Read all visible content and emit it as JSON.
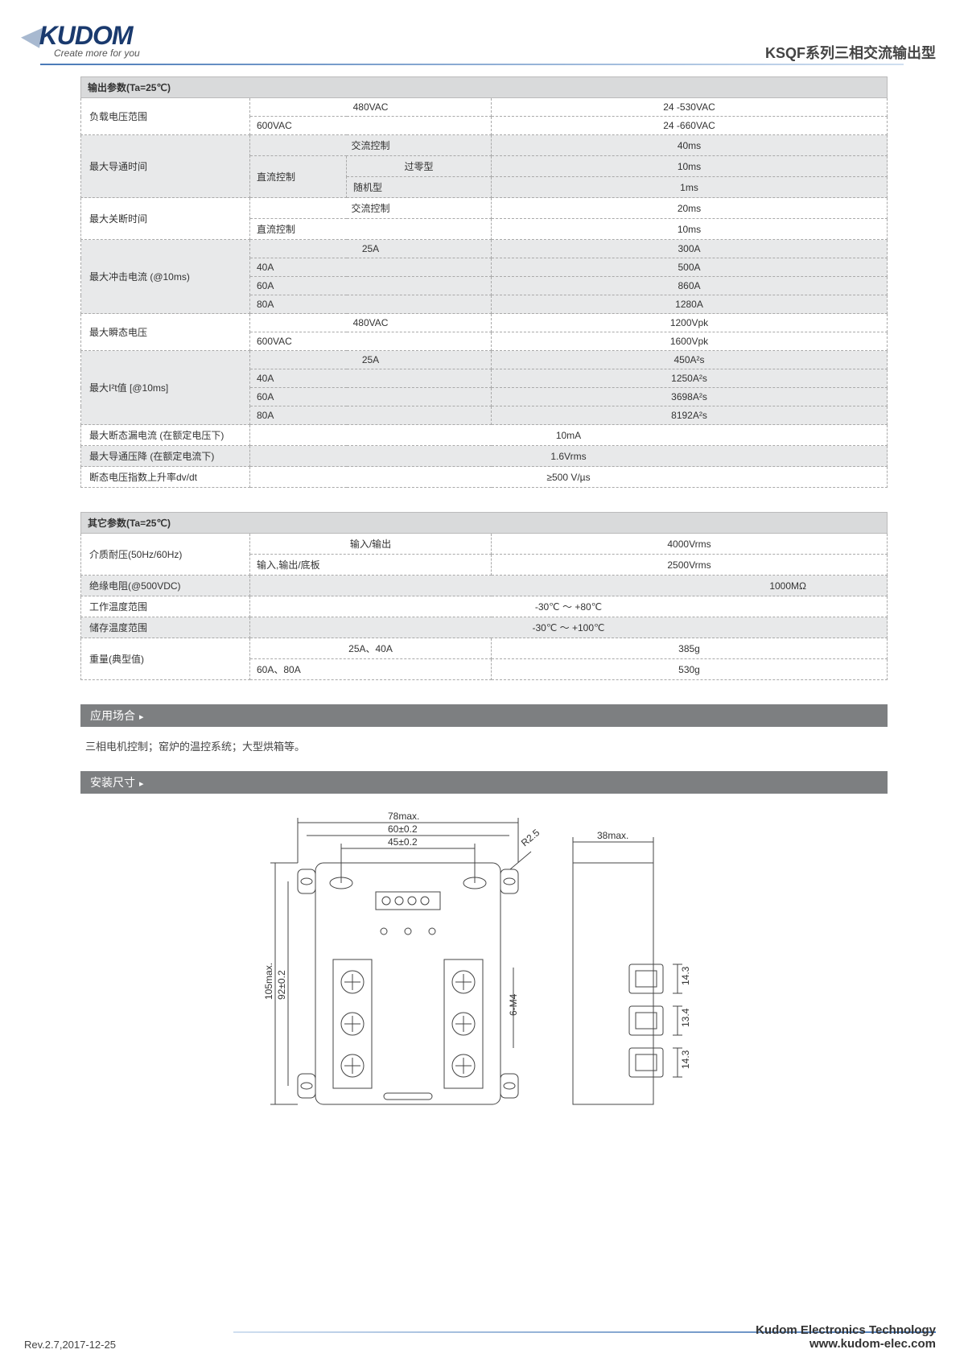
{
  "header": {
    "logo_text": "KUDOM",
    "tagline": "Create more for you",
    "product_title": "KSQF系列三相交流输出型"
  },
  "table1": {
    "title": "输出参数(Ta=25℃)",
    "rows": [
      {
        "label": "负载电压范围",
        "sub": "480VAC",
        "val": "24 -530VAC",
        "shade": false
      },
      {
        "label": "",
        "sub": "600VAC",
        "val": "24 -660VAC",
        "shade": false
      },
      {
        "label": "最大导通时间",
        "mid": "",
        "sub": "交流控制",
        "val": "40ms",
        "shade": true
      },
      {
        "label": "",
        "mid": "直流控制",
        "sub": "过零型",
        "val": "10ms",
        "shade": true
      },
      {
        "label": "",
        "mid": "",
        "sub": "随机型",
        "val": "1ms",
        "shade": true
      },
      {
        "label": "最大关断时间",
        "sub": "交流控制",
        "val": "20ms",
        "shade": false
      },
      {
        "label": "",
        "sub": "直流控制",
        "val": "10ms",
        "shade": false
      },
      {
        "label": "最大冲击电流 (@10ms)",
        "sub": "25A",
        "val": "300A",
        "shade": true
      },
      {
        "label": "",
        "sub": "40A",
        "val": "500A",
        "shade": true
      },
      {
        "label": "",
        "sub": "60A",
        "val": "860A",
        "shade": true
      },
      {
        "label": "",
        "sub": "80A",
        "val": "1280A",
        "shade": true
      },
      {
        "label": "最大瞬态电压",
        "sub": "480VAC",
        "val": "1200Vpk",
        "shade": false
      },
      {
        "label": "",
        "sub": "600VAC",
        "val": "1600Vpk",
        "shade": false
      },
      {
        "label": "最大I²t值 [@10ms]",
        "sub": "25A",
        "val": "450A²s",
        "shade": true
      },
      {
        "label": "",
        "sub": "40A",
        "val": "1250A²s",
        "shade": true
      },
      {
        "label": "",
        "sub": "60A",
        "val": "3698A²s",
        "shade": true
      },
      {
        "label": "",
        "sub": "80A",
        "val": "8192A²s",
        "shade": true
      },
      {
        "label": "最大断态漏电流 (在额定电压下)",
        "full": "10mA",
        "shade": false
      },
      {
        "label": "最大导通压降 (在额定电流下)",
        "full": "1.6Vrms",
        "shade": true
      },
      {
        "label": "断态电压指数上升率dv/dt",
        "full": "≥500 V/µs",
        "shade": false
      }
    ]
  },
  "table2": {
    "title": "其它参数(Ta=25℃)",
    "rows": [
      {
        "label": "介质耐压(50Hz/60Hz)",
        "sub": "输入/输出",
        "val": "4000Vrms",
        "shade": false
      },
      {
        "label": "",
        "sub": "输入,输出/底板",
        "val": "2500Vrms",
        "shade": false
      },
      {
        "label": "绝缘电阻(@500VDC)",
        "full": "1000MΩ",
        "shade": true
      },
      {
        "label": "工作温度范围",
        "full": "-30℃ ～ +80℃",
        "shade": false
      },
      {
        "label": "储存温度范围",
        "full": "-30℃ ～ +100℃",
        "shade": true
      },
      {
        "label": "重量(典型值)",
        "sub": "25A、40A",
        "val": "385g",
        "shade": false
      },
      {
        "label": "",
        "sub": "60A、80A",
        "val": "530g",
        "shade": false
      }
    ]
  },
  "sections": {
    "applications_title": "应用场合",
    "applications_text": "三相电机控制；窑炉的温控系统；大型烘箱等。",
    "dimensions_title": "安装尺寸"
  },
  "diagram": {
    "front": {
      "width_max": "78max.",
      "width_holes": "60±0.2",
      "width_screws": "45±0.2",
      "radius": "R2.5",
      "height_max": "105max.",
      "height_holes": "92±0.2",
      "screws_label": "6-M4"
    },
    "side": {
      "depth_max": "38max.",
      "term_spacing_top": "14.3",
      "term_spacing_mid": "13.4",
      "term_spacing_bot": "14.3"
    },
    "colors": {
      "line": "#444",
      "light": "#888"
    }
  },
  "footer": {
    "revision": "Rev.2.7,2017-12-25",
    "company": "Kudom Electronics Technology",
    "url": "www.kudom-elec.com"
  }
}
